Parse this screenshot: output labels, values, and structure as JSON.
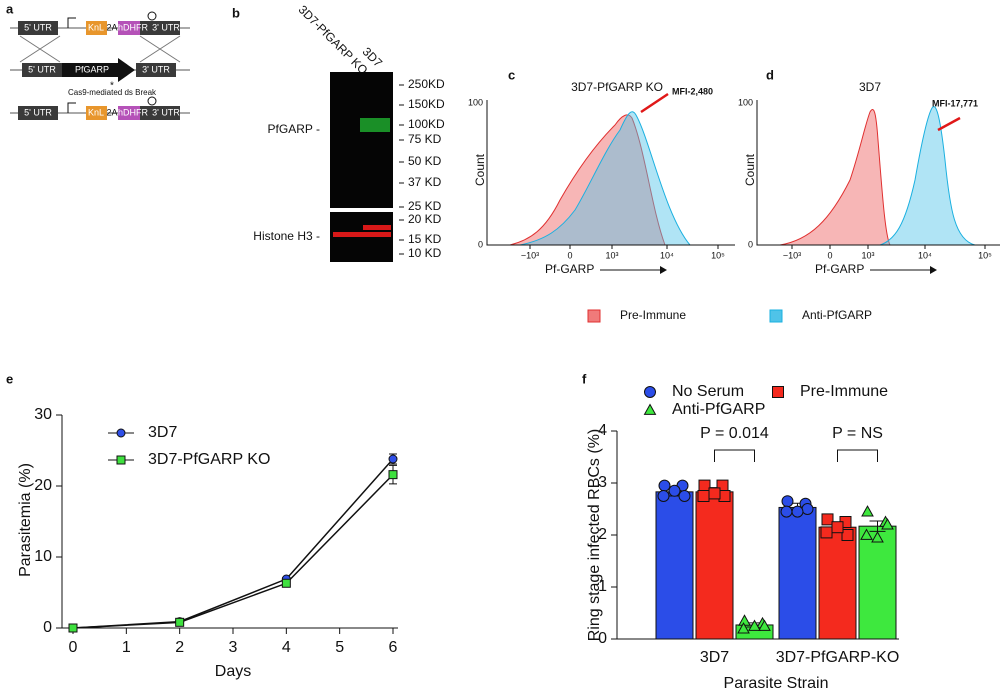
{
  "panels": {
    "a": {
      "label": "a",
      "row1": [
        "5' UTR",
        "KnL",
        "2A",
        "hDHFR",
        "3' UTR"
      ],
      "row2": [
        "5' UTR",
        "PfGARP",
        "3' UTR"
      ],
      "note": "Cas9-mediated ds Break",
      "row3": [
        "5' UTR",
        "KnL",
        "2A",
        "hDHFR",
        "3' UTR"
      ]
    },
    "b": {
      "label": "b",
      "lanes": [
        "3D7-PfGARP KO",
        "3D7"
      ],
      "ladder": [
        "250KD",
        "150KD",
        "100KD",
        "75 KD",
        "50 KD",
        "37 KD",
        "25 KD",
        "20 KD",
        "15 KD",
        "10 KD"
      ],
      "rows": [
        "PfGARP -",
        "Histone H3 -"
      ]
    },
    "c": {
      "label": "c",
      "title": "3D7-PfGARP KO",
      "annotation": "MFI-2,480",
      "ylabel": "Count",
      "xlabel": "Pf-GARP",
      "yticks": [
        "100",
        "0"
      ],
      "xticks": [
        "−10³",
        "0",
        "10³",
        "10⁴",
        "10⁵"
      ]
    },
    "d": {
      "label": "d",
      "title": "3D7",
      "annotation": "MFI-17,771",
      "ylabel": "Count",
      "xlabel": "Pf-GARP",
      "yticks": [
        "100",
        "0"
      ],
      "xticks": [
        "−10³",
        "0",
        "10³",
        "10⁴",
        "10⁵"
      ]
    },
    "legend": [
      "Pre-Immune",
      "Anti-PfGARP"
    ]
  },
  "chart_data": [
    {
      "type": "line",
      "panel": "e",
      "xlabel": "Days",
      "ylabel": "Parasitemia (%)",
      "x": [
        0,
        2,
        4,
        6
      ],
      "xlim": [
        0,
        6
      ],
      "xticks": [
        0,
        1,
        2,
        3,
        4,
        5,
        6
      ],
      "ylim": [
        0,
        30
      ],
      "yticks": [
        0,
        10,
        20,
        30
      ],
      "series": [
        {
          "name": "3D7",
          "color": "#2f4fe8",
          "marker": "circle",
          "values": [
            0,
            0.9,
            6.9,
            23.8
          ],
          "errors": [
            0,
            0.1,
            0.2,
            0.7
          ]
        },
        {
          "name": "3D7-PfGARP KO",
          "color": "#3ee03e",
          "marker": "square",
          "values": [
            0,
            0.8,
            6.3,
            21.6
          ],
          "errors": [
            0,
            0.1,
            0.2,
            1.3
          ]
        }
      ]
    },
    {
      "type": "bar",
      "panel": "f",
      "xlabel": "Parasite Strain",
      "ylabel": "Ring stage infected RBCs (%)",
      "categories": [
        "3D7",
        "3D7-PfGARP-KO"
      ],
      "ylim": [
        0,
        4
      ],
      "yticks": [
        0,
        1,
        2,
        3,
        4
      ],
      "annotations": [
        "P = 0.014",
        "P = NS"
      ],
      "series": [
        {
          "name": "No Serum",
          "color": "#2b4de8",
          "marker": "circle",
          "values": [
            2.83,
            2.53
          ],
          "errors": [
            0.08,
            0.08
          ],
          "points": [
            [
              2.95,
              2.95,
              2.75,
              2.75,
              2.85
            ],
            [
              2.65,
              2.6,
              2.45,
              2.5,
              2.45
            ]
          ]
        },
        {
          "name": "Pre-Immune",
          "color": "#f42a1e",
          "marker": "square",
          "values": [
            2.83,
            2.15
          ],
          "errors": [
            0.08,
            0.07
          ],
          "points": [
            [
              2.95,
              2.95,
              2.75,
              2.75,
              2.8
            ],
            [
              2.3,
              2.25,
              2.05,
              2.0,
              2.15
            ]
          ]
        },
        {
          "name": "Anti-PfGARP",
          "color": "#3ee83e",
          "marker": "triangle",
          "values": [
            0.27,
            2.17
          ],
          "errors": [
            0.04,
            0.1
          ],
          "points": [
            [
              0.35,
              0.3,
              0.2,
              0.25,
              0.25
            ],
            [
              2.45,
              2.25,
              2.0,
              2.2,
              1.95
            ]
          ]
        }
      ]
    }
  ]
}
